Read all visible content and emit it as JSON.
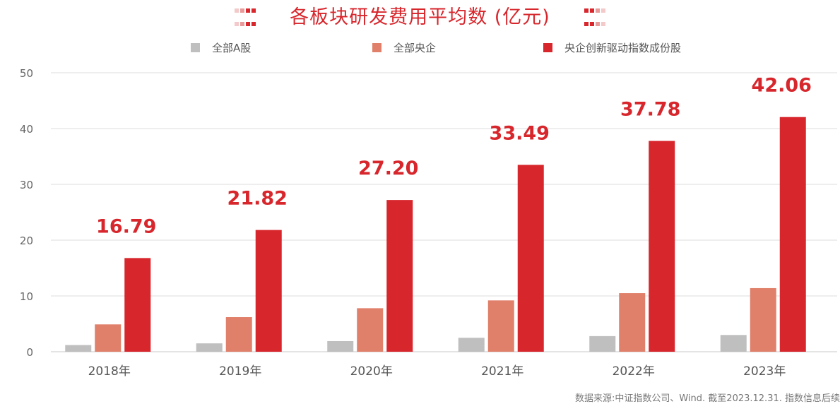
{
  "title": "各板块研发费用平均数 (亿元)",
  "source": "数据来源:中证指数公司、Wind. 截至2023.12.31. 指数信息后续",
  "chart_data": {
    "type": "bar",
    "categories": [
      "2018年",
      "2019年",
      "2020年",
      "2021年",
      "2022年",
      "2023年"
    ],
    "series": [
      {
        "name": "全部A股",
        "color": "#bfbfbf",
        "values": [
          1.2,
          1.5,
          1.9,
          2.5,
          2.8,
          3.0
        ]
      },
      {
        "name": "全部央企",
        "color": "#e0806a",
        "values": [
          4.9,
          6.2,
          7.8,
          9.2,
          10.5,
          11.4
        ]
      },
      {
        "name": "央企创新驱动指数成份股",
        "color": "#d7262c",
        "values": [
          16.79,
          21.82,
          27.2,
          33.49,
          37.78,
          42.06
        ]
      }
    ],
    "data_labels": [
      "16.79",
      "21.82",
      "27.20",
      "33.49",
      "37.78",
      "42.06"
    ],
    "yticks": [
      "0",
      "10",
      "20",
      "30",
      "40",
      "50"
    ],
    "ylim": [
      0,
      50
    ],
    "grid": true,
    "legend_position": "top-center"
  }
}
